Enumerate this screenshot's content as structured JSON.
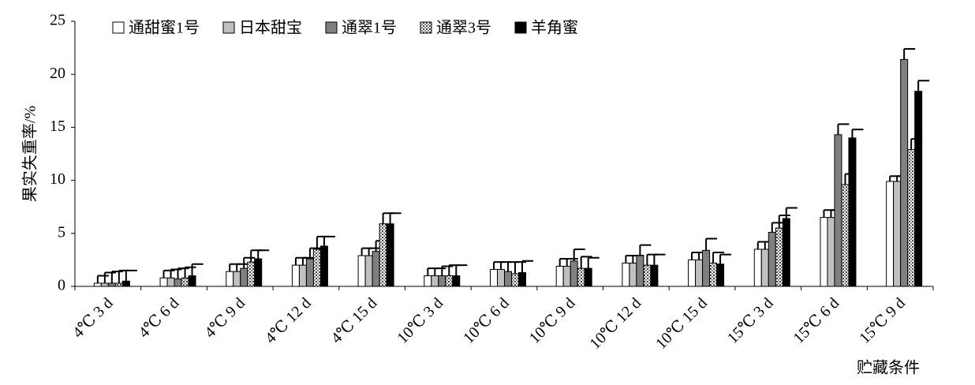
{
  "chart_data": {
    "type": "bar",
    "y_label": "果实失重率/%",
    "x_label": "贮藏条件",
    "categories": [
      "4℃ 3 d",
      "4℃ 6 d",
      "4℃ 9 d",
      "4℃ 12 d",
      "4℃ 15 d",
      "10℃ 3 d",
      "10℃ 6 d",
      "10℃ 9 d",
      "10℃ 12 d",
      "10℃ 15 d",
      "15℃ 3 d",
      "15℃ 6 d",
      "15℃ 9 d"
    ],
    "series": [
      {
        "name": "通甜蜜1号",
        "color": "#ffffff",
        "values": [
          0.3,
          0.8,
          1.4,
          2.0,
          2.9,
          1.0,
          1.6,
          1.9,
          2.2,
          2.5,
          3.5,
          6.5,
          9.9
        ],
        "errors": [
          0.7,
          0.7,
          0.7,
          0.7,
          0.7,
          0.7,
          0.7,
          0.7,
          0.7,
          0.7,
          0.7,
          0.7,
          0.5
        ]
      },
      {
        "name": "日本甜宝",
        "color": "#c0c0c0",
        "values": [
          0.3,
          0.8,
          1.4,
          2.0,
          2.9,
          1.0,
          1.6,
          1.9,
          2.2,
          2.5,
          3.5,
          6.5,
          9.9
        ],
        "errors": [
          1.0,
          0.8,
          0.7,
          0.7,
          0.7,
          0.7,
          0.7,
          0.7,
          0.7,
          0.7,
          0.7,
          0.7,
          0.5
        ]
      },
      {
        "name": "通翠1号",
        "color": "#808080",
        "values": [
          0.3,
          0.7,
          1.7,
          2.6,
          3.3,
          1.0,
          1.4,
          2.4,
          2.9,
          3.4,
          5.1,
          14.3,
          21.4
        ],
        "errors": [
          1.1,
          1.0,
          1.0,
          1.0,
          1.0,
          0.9,
          0.9,
          1.1,
          1.0,
          1.1,
          0.9,
          1.0,
          1.0
        ]
      },
      {
        "name": "通翠3号",
        "color": "#ffffff",
        "pattern": "dots",
        "values": [
          0.3,
          0.8,
          2.3,
          3.5,
          5.9,
          1.0,
          1.2,
          1.7,
          2.0,
          2.2,
          5.5,
          9.6,
          12.9
        ],
        "errors": [
          1.2,
          1.0,
          1.1,
          1.2,
          1.0,
          1.0,
          1.1,
          1.1,
          1.0,
          1.0,
          1.2,
          1.0,
          1.0
        ]
      },
      {
        "name": "羊角蜜",
        "color": "#000000",
        "values": [
          0.5,
          1.0,
          2.6,
          3.8,
          5.9,
          1.0,
          1.3,
          1.7,
          2.0,
          2.1,
          6.4,
          14.0,
          18.4
        ],
        "errors": [
          1.0,
          1.1,
          0.8,
          0.9,
          1.0,
          1.0,
          1.1,
          1.0,
          1.0,
          0.9,
          1.0,
          0.8,
          1.0
        ]
      }
    ],
    "ylim": [
      0,
      25
    ],
    "yticks": [
      0,
      5,
      10,
      15,
      20,
      25
    ],
    "grid": false,
    "legend": "top"
  }
}
